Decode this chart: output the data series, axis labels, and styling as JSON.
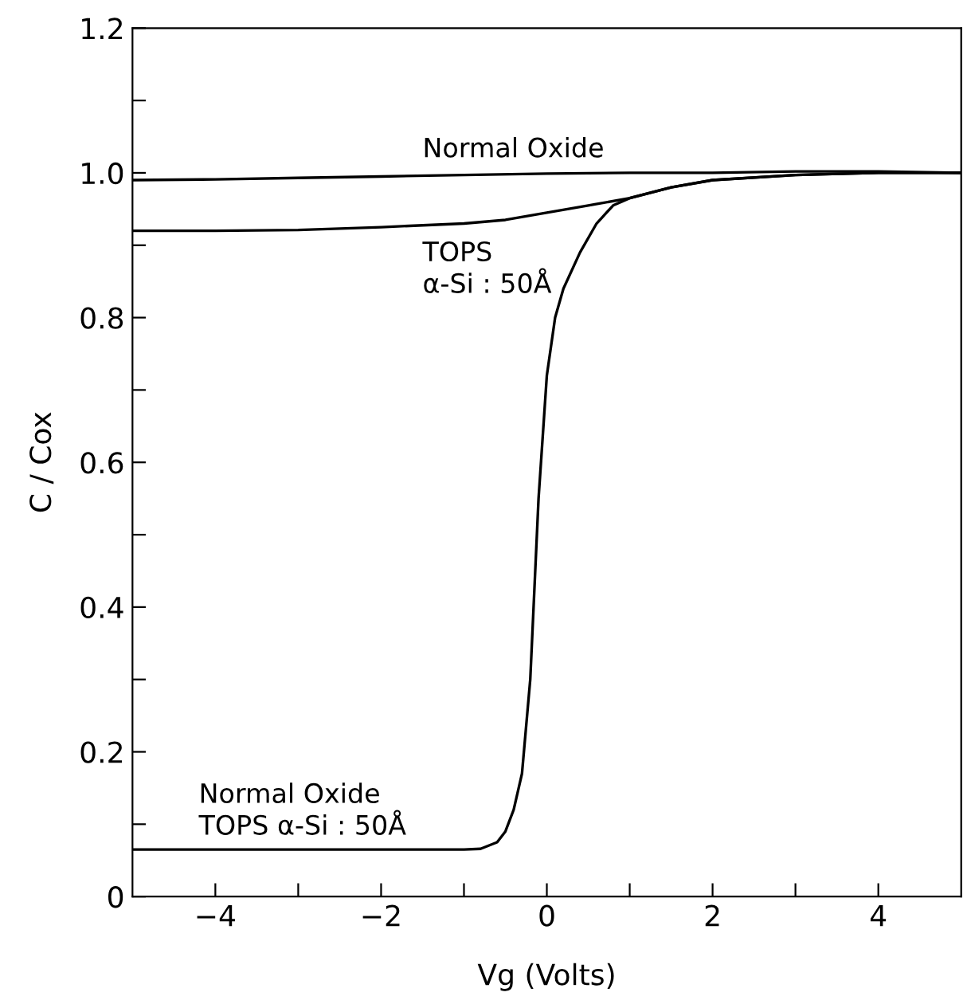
{
  "chart_data": {
    "type": "line",
    "xlabel": "Vg (Volts)",
    "ylabel": "C / Cox",
    "xlim": [
      -5,
      5
    ],
    "ylim": [
      0,
      1.2
    ],
    "xticks": [
      {
        "value": -4,
        "label": "−4"
      },
      {
        "value": -3,
        "label": null
      },
      {
        "value": -2,
        "label": "−2"
      },
      {
        "value": -1,
        "label": null
      },
      0,
      {
        "value": 1,
        "label": null
      },
      2,
      {
        "value": 3,
        "label": null
      },
      4
    ],
    "yticks": [
      0,
      {
        "value": 0.1,
        "label": null
      },
      0.2,
      {
        "value": 0.3,
        "label": null
      },
      0.4,
      {
        "value": 0.5,
        "label": null
      },
      0.6,
      {
        "value": 0.7,
        "label": null
      },
      0.8,
      {
        "value": 0.9,
        "label": null
      },
      {
        "value": 1.0,
        "label": "1.0"
      },
      {
        "value": 1.1,
        "label": null
      },
      1.2
    ],
    "grid": false,
    "legend": false,
    "marker": "none",
    "line_style": "solid",
    "series": [
      {
        "name": "Normal Oxide",
        "color": "#000000",
        "x": [
          -5,
          -4,
          -3,
          -2,
          -1,
          0,
          1,
          2,
          3,
          4,
          5
        ],
        "values": [
          0.99,
          0.991,
          0.993,
          0.995,
          0.997,
          0.999,
          1.0,
          1.0,
          1.002,
          1.002,
          1.0
        ]
      },
      {
        "name": "TOPS\nα-Si : 50Å",
        "color": "#000000",
        "x": [
          -5,
          -4,
          -3,
          -2,
          -1,
          -0.5,
          0,
          0.5,
          1,
          1.5,
          2,
          3,
          4,
          5
        ],
        "values": [
          0.92,
          0.92,
          0.921,
          0.925,
          0.93,
          0.935,
          0.945,
          0.955,
          0.965,
          0.98,
          0.99,
          0.997,
          1.0,
          1.0
        ]
      },
      {
        "name": "Normal Oxide\nTOPS α-Si : 50Å",
        "color": "#000000",
        "x": [
          -5,
          -3,
          -1,
          -0.8,
          -0.6,
          -0.5,
          -0.4,
          -0.3,
          -0.2,
          -0.1,
          0,
          0.1,
          0.2,
          0.4,
          0.6,
          0.8,
          1.0,
          1.5,
          2,
          3,
          4,
          5
        ],
        "values": [
          0.065,
          0.065,
          0.065,
          0.066,
          0.075,
          0.09,
          0.12,
          0.17,
          0.3,
          0.55,
          0.72,
          0.8,
          0.84,
          0.89,
          0.93,
          0.955,
          0.965,
          0.98,
          0.99,
          0.997,
          1.0,
          1.0
        ]
      }
    ]
  }
}
